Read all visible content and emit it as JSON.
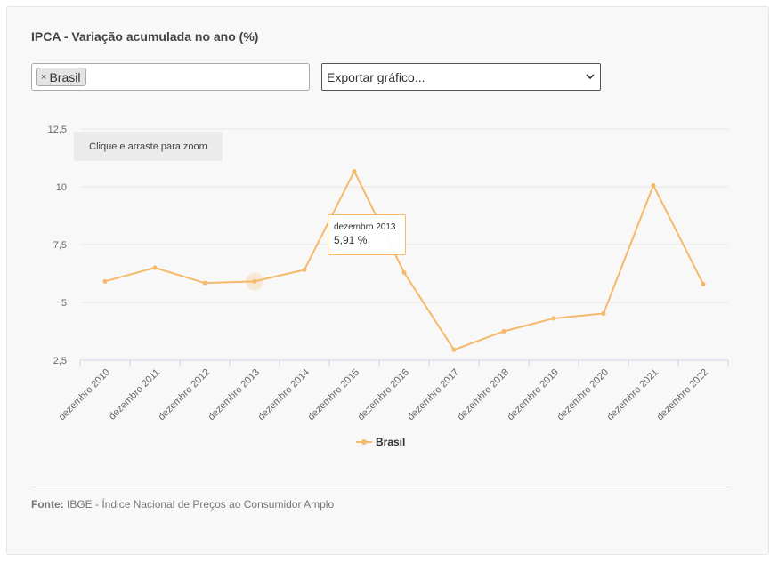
{
  "header": {
    "title": "IPCA - Variação acumulada no ano (%)"
  },
  "filter": {
    "chip_label": "Brasil",
    "chip_remove": "×"
  },
  "export": {
    "label": "Exportar gráfico..."
  },
  "zoom_hint": "Clique e arraste para zoom",
  "tooltip": {
    "label": "dezembro 2013",
    "value": "5,91 %"
  },
  "legend": {
    "label": "Brasil"
  },
  "footer": {
    "source_label": "Fonte:",
    "source_text": "IBGE - Índice Nacional de Preços ao Consumidor Amplo"
  },
  "colors": {
    "series": "#f4b96b",
    "grid": "#e6e6e6",
    "axis": "#ccd6eb"
  },
  "chart_data": {
    "type": "line",
    "title": "IPCA - Variação acumulada no ano (%)",
    "categories": [
      "dezembro 2010",
      "dezembro 2011",
      "dezembro 2012",
      "dezembro 2013",
      "dezembro 2014",
      "dezembro 2015",
      "dezembro 2016",
      "dezembro 2017",
      "dezembro 2018",
      "dezembro 2019",
      "dezembro 2020",
      "dezembro 2021",
      "dezembro 2022"
    ],
    "series": [
      {
        "name": "Brasil",
        "values": [
          5.91,
          6.5,
          5.84,
          5.91,
          6.41,
          10.67,
          6.29,
          2.95,
          3.75,
          4.31,
          4.52,
          10.06,
          5.79
        ]
      }
    ],
    "ylim": [
      2.5,
      12.5
    ],
    "yticks": [
      2.5,
      5,
      7.5,
      10,
      12.5
    ],
    "ytick_labels": [
      "2,5",
      "5",
      "7,5",
      "10",
      "12,5"
    ],
    "highlight_index": 3,
    "grid": true,
    "legend_position": "bottom-center"
  }
}
